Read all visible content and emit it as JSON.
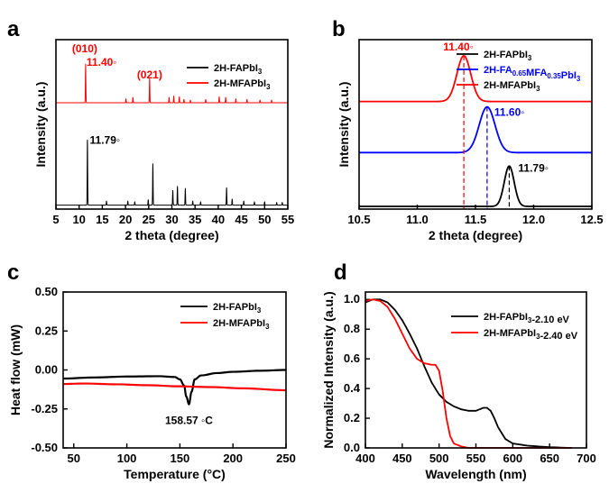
{
  "colors": {
    "black": "#000000",
    "red": "#ff0000",
    "blue": "#0000ff"
  },
  "chart_data": [
    {
      "panel": "a",
      "type": "line",
      "xlabel": "2 theta (degree)",
      "ylabel": "Intensity (a.u.)",
      "xlim": [
        5,
        55
      ],
      "xticks": [
        5,
        10,
        15,
        20,
        25,
        30,
        35,
        40,
        45,
        50,
        55
      ],
      "legend": {
        "position": "top-right"
      },
      "series": [
        {
          "name": "2H-FAPbI3",
          "color": "#000000",
          "offset": 0,
          "baseline": 0.06,
          "peaks": [
            [
              11.79,
              1.0
            ],
            [
              15.9,
              0.06
            ],
            [
              20.5,
              0.06
            ],
            [
              22.0,
              0.05
            ],
            [
              24.9,
              0.08
            ],
            [
              25.9,
              0.62
            ],
            [
              30.2,
              0.22
            ],
            [
              31.2,
              0.28
            ],
            [
              32.9,
              0.25
            ],
            [
              34.5,
              0.06
            ],
            [
              36.2,
              0.05
            ],
            [
              41.8,
              0.26
            ],
            [
              43.0,
              0.09
            ],
            [
              45.5,
              0.06
            ],
            [
              47.8,
              0.05
            ],
            [
              50.0,
              0.05
            ],
            [
              52.6,
              0.04
            ],
            [
              53.8,
              0.04
            ]
          ]
        },
        {
          "name": "2H-MFAPbI3",
          "color": "#ff0000",
          "offset": 1.55,
          "baseline": 0.05,
          "peaks": [
            [
              11.4,
              0.58
            ],
            [
              20.1,
              0.06
            ],
            [
              21.6,
              0.08
            ],
            [
              25.2,
              0.36
            ],
            [
              29.4,
              0.08
            ],
            [
              30.4,
              0.1
            ],
            [
              31.6,
              0.09
            ],
            [
              32.6,
              0.05
            ],
            [
              34.0,
              0.04
            ],
            [
              37.3,
              0.05
            ],
            [
              40.2,
              0.09
            ],
            [
              41.6,
              0.08
            ],
            [
              43.8,
              0.06
            ],
            [
              46.2,
              0.05
            ],
            [
              49.0,
              0.04
            ],
            [
              51.5,
              0.04
            ]
          ]
        }
      ],
      "annotations": [
        {
          "text": "(010)",
          "color": "#ff0000",
          "x": 11.2,
          "y": 2.36
        },
        {
          "text": "11.40◦",
          "color": "#ff0000",
          "x": 11.6,
          "y": 2.16
        },
        {
          "text": "(021)",
          "color": "#ff0000",
          "x": 25.2,
          "y": 1.97
        },
        {
          "text": "11.79◦",
          "color": "#000000",
          "x": 12.3,
          "y": 0.98
        }
      ]
    },
    {
      "panel": "b",
      "type": "line",
      "xlabel": "2 theta (degree)",
      "ylabel": "Intensity (a.u.)",
      "xlim": [
        10.5,
        12.5
      ],
      "xticks": [
        10.5,
        11.0,
        11.5,
        12.0,
        12.5
      ],
      "legend": {
        "position": "top-right"
      },
      "series": [
        {
          "name": "2H-FAPbI3",
          "color": "#000000",
          "center": 11.79,
          "fwhm": 0.1,
          "height": 0.75,
          "offset": 0.05
        },
        {
          "name": "2H-FA0.65MFA0.35PbI3",
          "color": "#0000ff",
          "center": 11.6,
          "fwhm": 0.16,
          "height": 0.85,
          "offset": 1.05
        },
        {
          "name": "2H-MFAPbI3",
          "color": "#ff0000",
          "center": 11.4,
          "fwhm": 0.14,
          "height": 0.85,
          "offset": 2.0
        }
      ],
      "ylim": [
        0,
        3.15
      ],
      "annotations": [
        {
          "text": "11.40◦",
          "color": "#ff0000"
        },
        {
          "text": "11.60◦",
          "color": "#0000ff"
        },
        {
          "text": "11.79◦",
          "color": "#000000"
        }
      ]
    },
    {
      "panel": "c",
      "type": "line",
      "xlabel": "Temperature (°C)",
      "ylabel": "Heat flow (mW)",
      "xlim": [
        40,
        250
      ],
      "ylim": [
        -0.5,
        0.5
      ],
      "xticks": [
        50,
        100,
        150,
        200,
        250
      ],
      "yticks": [
        "0.50",
        "0.25",
        "0.00",
        "-0.25",
        "-0.50"
      ],
      "legend": {
        "position": "top-right"
      },
      "series": [
        {
          "name": "2H-FAPbI3",
          "color": "#000000",
          "x": [
            40,
            70,
            100,
            130,
            145,
            150,
            154,
            156,
            158.57,
            161,
            164,
            170,
            185,
            200,
            225,
            250
          ],
          "y": [
            -0.055,
            -0.048,
            -0.042,
            -0.04,
            -0.045,
            -0.06,
            -0.1,
            -0.17,
            -0.22,
            -0.14,
            -0.06,
            -0.035,
            -0.02,
            -0.012,
            -0.005,
            0.0
          ]
        },
        {
          "name": "2H-MFAPbI3",
          "color": "#ff0000",
          "x": [
            40,
            60,
            90,
            120,
            150,
            180,
            210,
            250
          ],
          "y": [
            -0.09,
            -0.087,
            -0.092,
            -0.098,
            -0.105,
            -0.11,
            -0.118,
            -0.13
          ]
        }
      ],
      "annotations": [
        {
          "text": "158.57 ◦C",
          "color": "#000000"
        }
      ]
    },
    {
      "panel": "d",
      "type": "line",
      "xlabel": "Wavelength (nm)",
      "ylabel": "Normalized Intensity (a.u.)",
      "xlim": [
        400,
        700
      ],
      "ylim": [
        0.0,
        1.05
      ],
      "xticks": [
        400,
        450,
        500,
        550,
        600,
        650,
        700
      ],
      "yticks": [
        "0.0",
        "0.2",
        "0.4",
        "0.6",
        "0.8",
        "1.0"
      ],
      "legend": {
        "position": "top-right"
      },
      "series": [
        {
          "name": "2H-FAPbI3-2.10 eV",
          "color": "#000000",
          "x": [
            400,
            410,
            420,
            430,
            440,
            450,
            460,
            470,
            480,
            490,
            500,
            510,
            520,
            530,
            540,
            550,
            560,
            565,
            570,
            575,
            580,
            590,
            600,
            620,
            650,
            680
          ],
          "y": [
            0.98,
            1.0,
            1.0,
            0.98,
            0.93,
            0.86,
            0.77,
            0.67,
            0.55,
            0.44,
            0.36,
            0.31,
            0.28,
            0.26,
            0.25,
            0.25,
            0.27,
            0.27,
            0.25,
            0.2,
            0.14,
            0.06,
            0.03,
            0.015,
            0.005,
            0.0
          ]
        },
        {
          "name": "2H-MFAPbI3-2.40 eV",
          "color": "#ff0000",
          "x": [
            400,
            410,
            420,
            430,
            440,
            450,
            460,
            470,
            480,
            490,
            495,
            500,
            505,
            510,
            515,
            520,
            530,
            540,
            560,
            600,
            650,
            680
          ],
          "y": [
            0.99,
            1.0,
            0.99,
            0.95,
            0.87,
            0.77,
            0.67,
            0.6,
            0.57,
            0.56,
            0.56,
            0.52,
            0.38,
            0.2,
            0.08,
            0.03,
            0.01,
            0.0,
            0.0,
            0.0,
            0.0,
            0.0
          ]
        }
      ]
    }
  ]
}
